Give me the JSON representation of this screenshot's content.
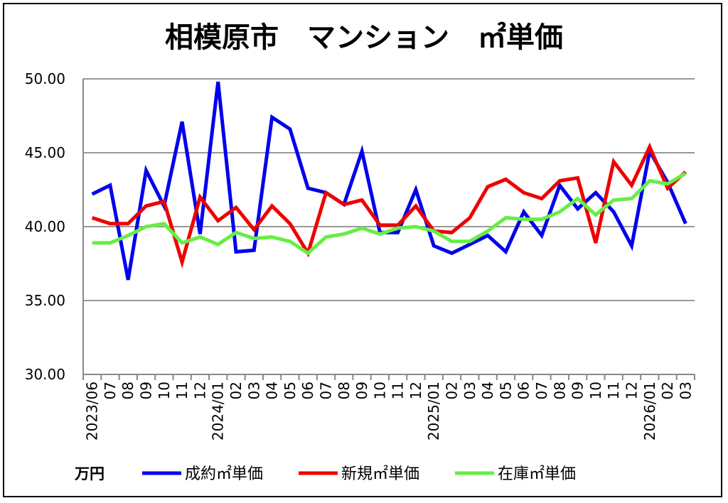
{
  "chart_data": {
    "type": "line",
    "title": "相模原市　マンション　㎡単価",
    "ylabel": "万円",
    "xlabel": "",
    "ylim": [
      30,
      50
    ],
    "yticks": [
      "30.00",
      "35.00",
      "40.00",
      "45.00",
      "50.00"
    ],
    "grid": true,
    "legend_position": "bottom",
    "x": [
      "2023/06",
      "07",
      "08",
      "09",
      "10",
      "11",
      "12",
      "2024/01",
      "02",
      "03",
      "04",
      "05",
      "06",
      "07",
      "08",
      "09",
      "10",
      "11",
      "12",
      "2025/01",
      "02",
      "03",
      "04",
      "05",
      "06",
      "07",
      "08",
      "09",
      "10",
      "11",
      "12",
      "2026/01",
      "02",
      "03"
    ],
    "series": [
      {
        "name": "成約㎡単価",
        "color": "#0000ee",
        "values": [
          42.2,
          42.8,
          36.4,
          43.8,
          41.4,
          47.1,
          39.5,
          49.8,
          38.3,
          38.4,
          47.4,
          46.6,
          42.6,
          42.3,
          41.5,
          45.1,
          39.6,
          39.6,
          42.5,
          38.7,
          38.2,
          38.8,
          39.4,
          38.3,
          41.0,
          39.4,
          42.8,
          41.2,
          42.3,
          41.0,
          38.7,
          45.1,
          43.0,
          40.2
        ]
      },
      {
        "name": "新規㎡単価",
        "color": "#ee0000",
        "values": [
          40.6,
          40.2,
          40.2,
          41.4,
          41.7,
          37.6,
          42.0,
          40.4,
          41.3,
          39.8,
          41.4,
          40.2,
          38.2,
          42.3,
          41.5,
          41.8,
          40.1,
          40.1,
          41.4,
          39.7,
          39.6,
          40.6,
          42.7,
          43.2,
          42.3,
          41.9,
          43.1,
          43.3,
          38.9,
          44.4,
          42.8,
          45.4,
          42.6,
          43.7
        ]
      },
      {
        "name": "在庫㎡単価",
        "color": "#66ee44",
        "values": [
          38.9,
          38.9,
          39.4,
          40.0,
          40.2,
          38.9,
          39.3,
          38.8,
          39.6,
          39.2,
          39.3,
          39.0,
          38.2,
          39.3,
          39.5,
          39.9,
          39.5,
          39.9,
          40.0,
          39.7,
          39.0,
          39.0,
          39.7,
          40.6,
          40.5,
          40.5,
          41.0,
          41.9,
          40.8,
          41.8,
          41.9,
          43.1,
          42.9,
          43.6
        ]
      }
    ]
  }
}
